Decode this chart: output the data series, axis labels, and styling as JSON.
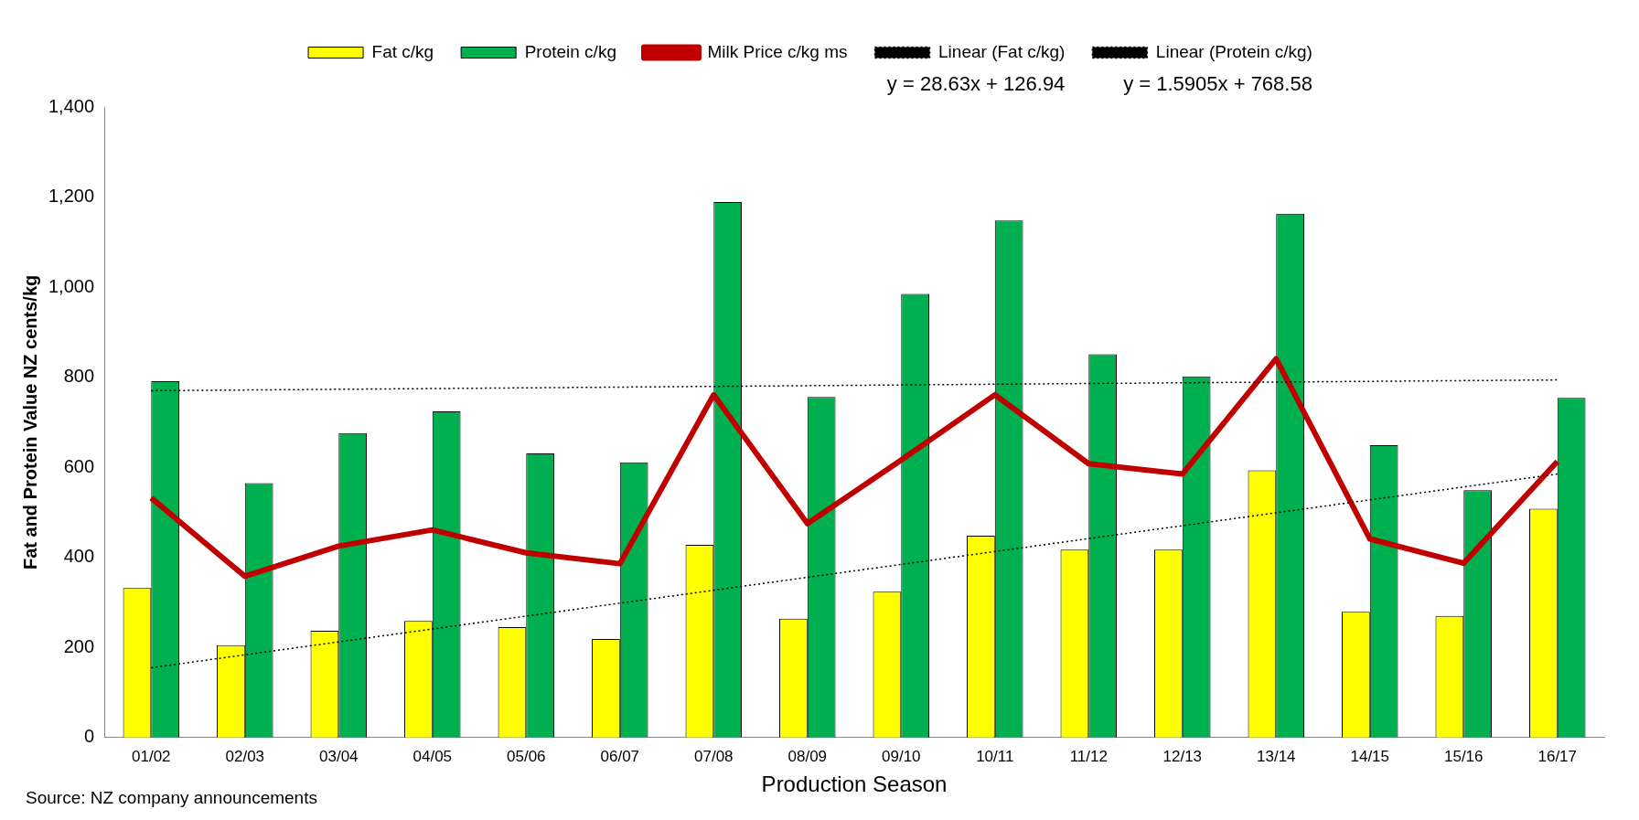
{
  "chart_data": {
    "type": "bar",
    "categories": [
      "01/02",
      "02/03",
      "03/04",
      "04/05",
      "05/06",
      "06/07",
      "07/08",
      "08/09",
      "09/10",
      "10/11",
      "11/12",
      "12/13",
      "13/14",
      "14/15",
      "15/16",
      "16/17"
    ],
    "series": [
      {
        "name": "Fat c/kg",
        "color": "#ffff00",
        "values": [
          332,
          205,
          237,
          259,
          245,
          219,
          428,
          264,
          324,
          448,
          417,
          417,
          593,
          279,
          270,
          508
        ]
      },
      {
        "name": "Protein c/kg",
        "color": "#00b050",
        "values": [
          791,
          565,
          676,
          724,
          631,
          611,
          1189,
          756,
          985,
          1148,
          851,
          802,
          1163,
          649,
          549,
          754
        ]
      },
      {
        "name": "Milk Price c/kg ms",
        "type": "line",
        "color": "#c00000",
        "marker": "none",
        "line_style": "solid",
        "values": [
          532,
          358,
          425,
          461,
          410,
          386,
          761,
          475,
          616,
          761,
          608,
          585,
          841,
          441,
          387,
          613
        ]
      },
      {
        "name": "Linear (Fat c/kg)",
        "type": "line",
        "color": "#000000",
        "marker": "none",
        "line_style": "dotted",
        "values": [
          155,
          null,
          null,
          null,
          null,
          null,
          null,
          null,
          null,
          null,
          null,
          null,
          null,
          null,
          null,
          585
        ]
      },
      {
        "name": "Linear (Protein c/kg)",
        "type": "line",
        "color": "#000000",
        "marker": "none",
        "line_style": "dotted",
        "values": [
          770,
          null,
          null,
          null,
          null,
          null,
          null,
          null,
          null,
          null,
          null,
          null,
          null,
          null,
          null,
          794
        ]
      }
    ],
    "ylim": [
      0,
      1400
    ],
    "yticks": [
      0,
      200,
      400,
      600,
      800,
      {
        "value": 1000,
        "label": "1,000"
      },
      {
        "value": 1200,
        "label": "1,200"
      },
      {
        "value": 1400,
        "label": "1,400"
      }
    ],
    "ylabel": "Fat and Protein Value NZ cents/kg",
    "xlabel": "Production Season",
    "grid": false,
    "legend": "top",
    "annotations": [
      "y = 28.63x + 126.94",
      "y = 1.5905x + 768.58",
      "Source: NZ company announcements"
    ]
  }
}
